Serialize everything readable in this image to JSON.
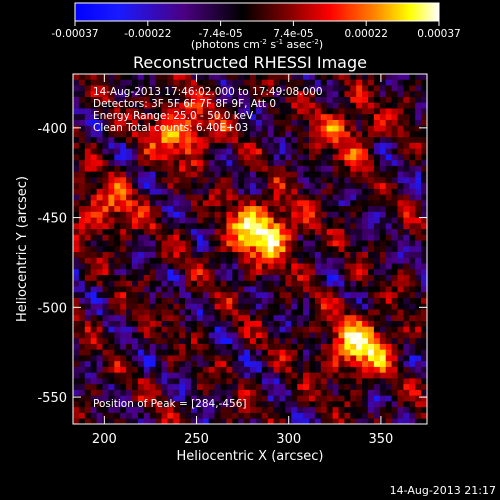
{
  "chart_data": {
    "type": "heatmap",
    "title": "Reconstructed RHESSI Image",
    "xlabel": "Heliocentric X (arcsec)",
    "ylabel": "Heliocentric Y (arcsec)",
    "xlim": [
      183,
      375
    ],
    "ylim": [
      -565,
      -370
    ],
    "x_ticks": [
      200,
      250,
      300,
      350
    ],
    "y_ticks": [
      -400,
      -450,
      -500,
      -550
    ],
    "colorbar": {
      "range": [
        -0.00037,
        0.00037
      ],
      "ticks": [
        "-0.00037",
        "-0.00022",
        "-7.4e-05",
        "7.4e-05",
        "0.00022",
        "0.00037"
      ],
      "label_main": "(photons cm",
      "label_exp1": "-2",
      "label_mid": " s",
      "label_exp2": "-1",
      "label_end": " asec",
      "label_exp3": "-2",
      "label_close": ")",
      "colormap": [
        "#0000ff",
        "#1a1aff",
        "#4b0082",
        "#000000",
        "#7a0000",
        "#ff0000",
        "#ff8000",
        "#ffff00",
        "#ffffff"
      ]
    },
    "annotations": {
      "time_range": "14-Aug-2013 17:46:02.000 to 17:49:08.000",
      "detectors": "Detectors: 3F 5F 6F 7F 8F 9F, Att 0",
      "energy": "Energy Range: 25.0 - 50.0 keV",
      "clean": "Clean    Total counts: 6.40E+03",
      "peak": "Position of Peak = [284,-456]"
    },
    "peak_position": [
      284,
      -456
    ],
    "bright_sources": [
      {
        "x": 284,
        "y": -456,
        "relative_intensity": 1.0
      },
      {
        "x": 337,
        "y": -520,
        "relative_intensity": 0.85
      },
      {
        "x": 240,
        "y": -400,
        "relative_intensity": 0.7
      },
      {
        "x": 330,
        "y": -400,
        "relative_intensity": 0.45
      },
      {
        "x": 200,
        "y": -445,
        "relative_intensity": 0.5
      }
    ],
    "timestamp": "14-Aug-2013 21:17"
  }
}
